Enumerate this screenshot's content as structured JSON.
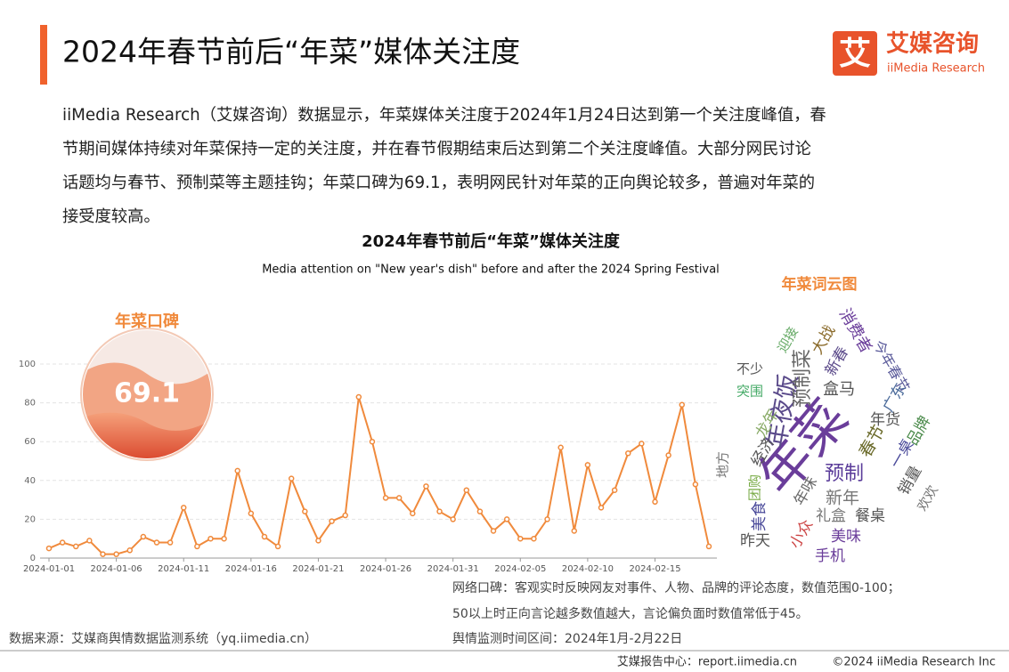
{
  "header": {
    "title": "2024年春节前后“年菜”媒体关注度",
    "logo_mark": "艾",
    "logo_name": "艾媒咨询",
    "logo_sub": "iiMedia Research"
  },
  "paragraph": [
    "iiMedia Research（艾媒咨询）数据显示，年菜媒体关注度于2024年1月24日达到第一个关注度峰值，春",
    "节期间媒体持续对年菜保持一定的关注度，并在春节假期结束后达到第二个关注度峰值。大部分网民讨论",
    "话题均与春节、预制菜等主题挂钩；年菜口碑为69.1，表明网民针对年菜的正向舆论较多，普遍对年菜的",
    "接受度较高。"
  ],
  "chart_data": {
    "type": "line",
    "title": "2024年春节前后“年菜”媒体关注度",
    "subtitle": "Media attention on \"New year's dish\" before and after the 2024 Spring Festival",
    "color": "#f08a3c",
    "grid": true,
    "x": [
      "2024-01-01",
      "2024-01-02",
      "2024-01-03",
      "2024-01-04",
      "2024-01-05",
      "2024-01-06",
      "2024-01-07",
      "2024-01-08",
      "2024-01-09",
      "2024-01-10",
      "2024-01-11",
      "2024-01-12",
      "2024-01-13",
      "2024-01-14",
      "2024-01-15",
      "2024-01-16",
      "2024-01-17",
      "2024-01-18",
      "2024-01-19",
      "2024-01-20",
      "2024-01-21",
      "2024-01-22",
      "2024-01-23",
      "2024-01-24",
      "2024-01-25",
      "2024-01-26",
      "2024-01-27",
      "2024-01-28",
      "2024-01-29",
      "2024-01-30",
      "2024-01-31",
      "2024-02-01",
      "2024-02-02",
      "2024-02-03",
      "2024-02-04",
      "2024-02-05",
      "2024-02-06",
      "2024-02-07",
      "2024-02-08",
      "2024-02-09",
      "2024-02-10",
      "2024-02-11",
      "2024-02-12",
      "2024-02-13",
      "2024-02-14",
      "2024-02-15",
      "2024-02-16",
      "2024-02-17",
      "2024-02-18",
      "2024-02-19"
    ],
    "values": [
      5,
      8,
      6,
      9,
      2,
      2,
      4,
      11,
      8,
      8,
      26,
      6,
      10,
      10,
      45,
      23,
      11,
      6,
      41,
      24,
      9,
      19,
      22,
      83,
      60,
      31,
      31,
      23,
      37,
      24,
      20,
      35,
      24,
      14,
      20,
      10,
      10,
      20,
      57,
      14,
      48,
      26,
      35,
      54,
      59,
      29,
      53,
      79,
      38,
      6
    ],
    "xticks": [
      "2024-01-01",
      "2024-01-06",
      "2024-01-11",
      "2024-01-16",
      "2024-01-21",
      "2024-01-26",
      "2024-01-31",
      "2024-02-05",
      "2024-02-10",
      "2024-02-15"
    ],
    "ylim": [
      0,
      100
    ],
    "yticks": [
      0,
      20,
      40,
      60,
      80,
      100
    ]
  },
  "gauge": {
    "title": "年菜口碑",
    "value": 69.1
  },
  "wordcloud": {
    "title": "年菜词云图",
    "words": [
      "年菜",
      "年夜饭",
      "预制菜",
      "预制",
      "消费者",
      "今年春节",
      "广东",
      "盒马",
      "新春",
      "大战",
      "年货",
      "品牌",
      "一桌",
      "春节",
      "销量",
      "欢欢",
      "新年",
      "礼盒",
      "餐桌",
      "美味",
      "手机",
      "昨天",
      "小众",
      "年味",
      "美食",
      "团购",
      "经济",
      "龙年",
      "突围",
      "不少",
      "地方",
      "迎接"
    ]
  },
  "notes": [
    "网络口碑：客观实时反映网友对事件、人物、品牌的评论态度，数值范围0-100；",
    "50以上时正向言论越多数值越大，言论偏负面时数值常低于45。",
    "舆情监测时间区间：2024年1月-2月22日"
  ],
  "source": "数据来源：艾媒商舆情数据监测系统（yq.iimedia.cn）",
  "footer": {
    "site": "艾媒报告中心：report.iimedia.cn",
    "copyright": "©2024  iiMedia Research Inc"
  }
}
